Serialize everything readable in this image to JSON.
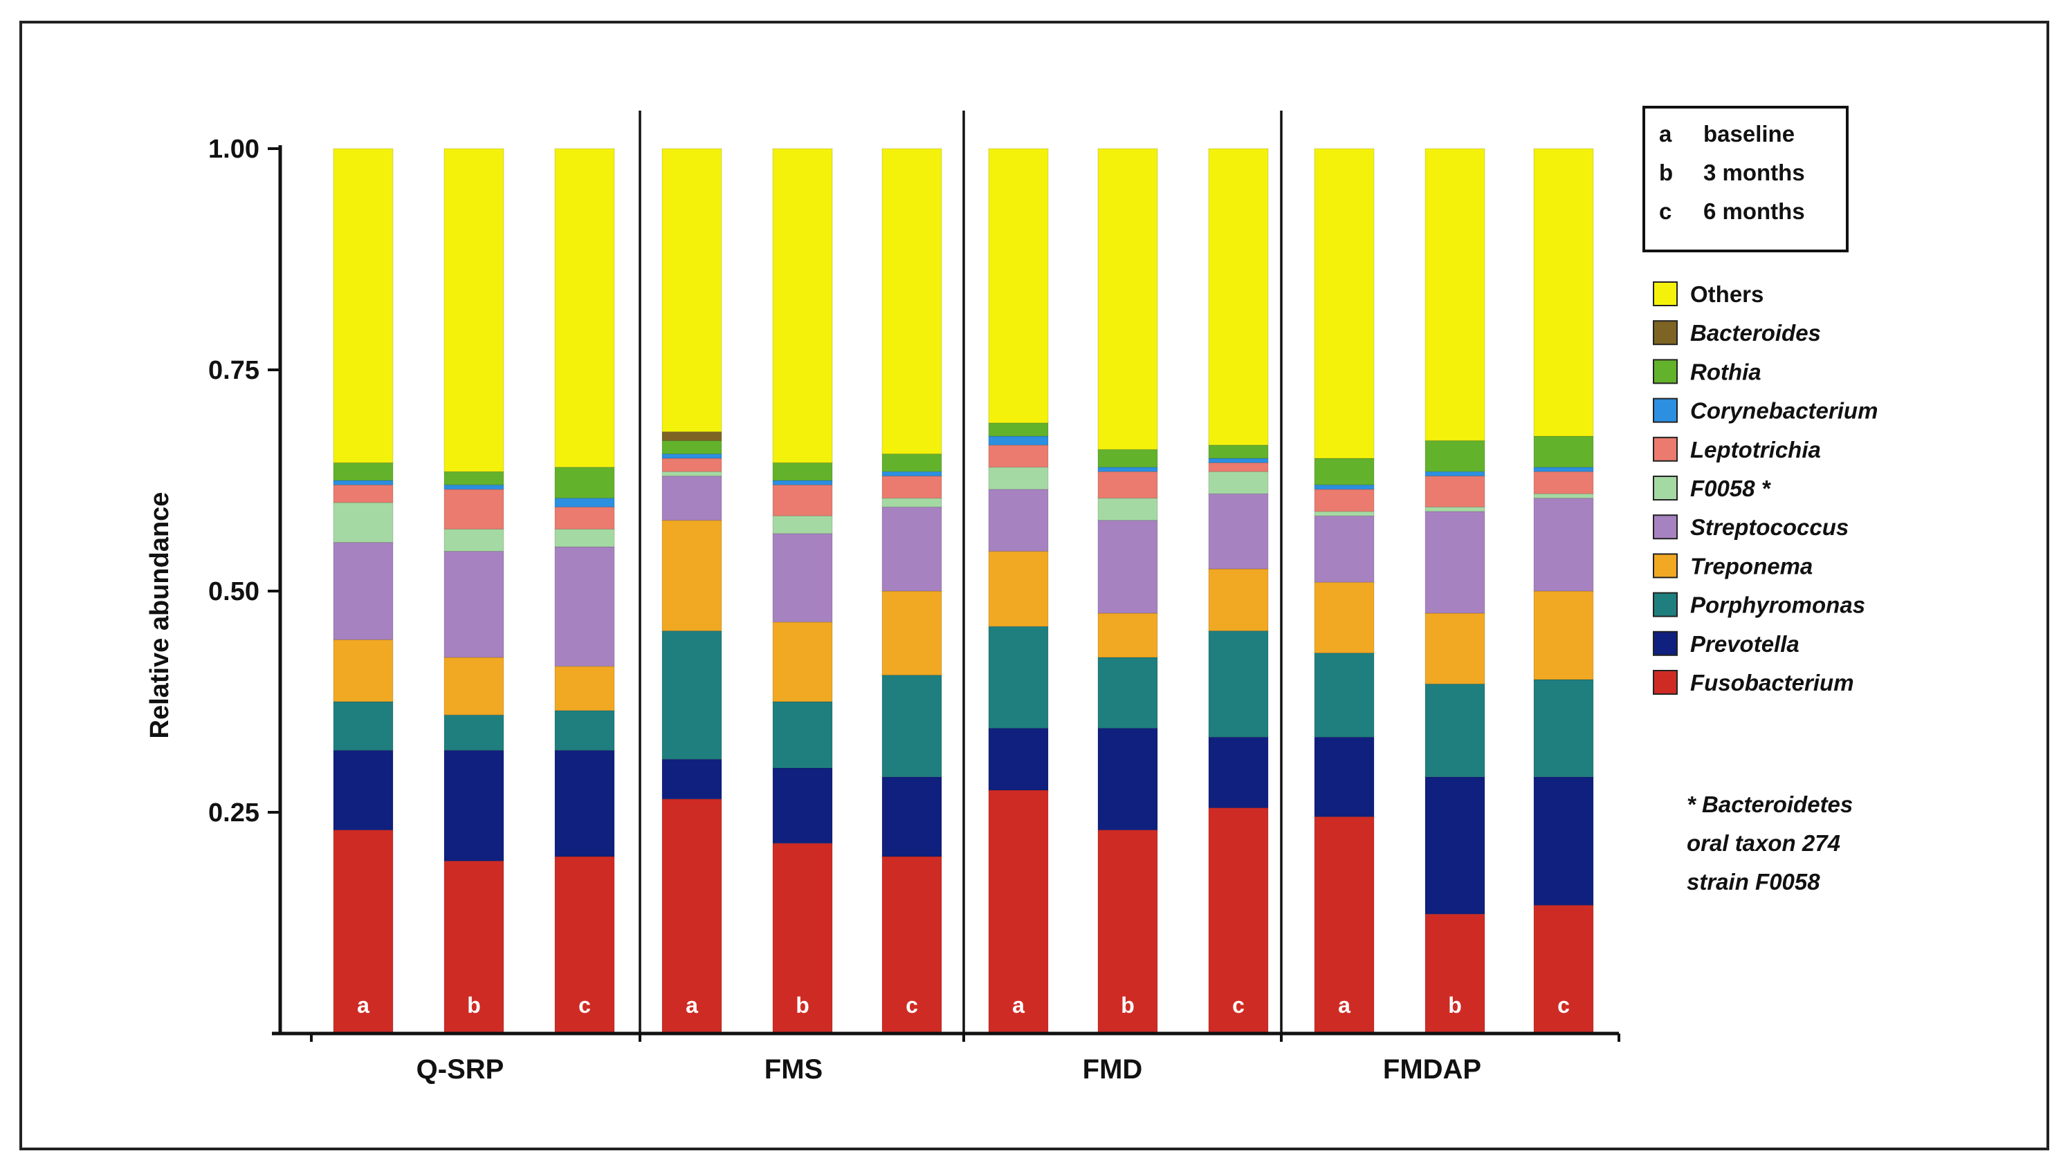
{
  "chart_data": {
    "type": "bar",
    "stacked": true,
    "ylabel": "Relative abundance",
    "ylim": [
      0,
      1
    ],
    "yticks": [
      "0.25",
      "0.50",
      "0.75",
      "1.00"
    ],
    "ytick_values": [
      0.25,
      0.5,
      0.75,
      1.0
    ],
    "groups": [
      "Q-SRP",
      "FMS",
      "FMD",
      "FMDAP"
    ],
    "timepoints": [
      {
        "code": "a",
        "label": "baseline"
      },
      {
        "code": "b",
        "label": "3 months"
      },
      {
        "code": "c",
        "label": "6 months"
      }
    ],
    "series": [
      {
        "name": "Fusobacterium",
        "color": "#cf2b25",
        "italic": true
      },
      {
        "name": "Prevotella",
        "color": "#10207e",
        "italic": true
      },
      {
        "name": "Porphyromonas",
        "color": "#1f7f7e",
        "italic": true
      },
      {
        "name": "Treponema",
        "color": "#f1a823",
        "italic": true
      },
      {
        "name": "Streptococcus",
        "color": "#a782c0",
        "italic": true
      },
      {
        "name": "F0058 *",
        "color": "#a5d9a3",
        "italic": true
      },
      {
        "name": "Leptotrichia",
        "color": "#ea7b6e",
        "italic": true
      },
      {
        "name": "Corynebacterium",
        "color": "#2c8fe0",
        "italic": true
      },
      {
        "name": "Rothia",
        "color": "#63b22c",
        "italic": true
      },
      {
        "name": "Bacteroides",
        "color": "#7e6424",
        "italic": true
      },
      {
        "name": "Others",
        "color": "#f4f20a",
        "italic": false
      }
    ],
    "bars": [
      {
        "group": "Q-SRP",
        "tp": "a",
        "values": [
          0.23,
          0.09,
          0.055,
          0.07,
          0.11,
          0.045,
          0.02,
          0.005,
          0.02,
          0.0,
          0.355
        ]
      },
      {
        "group": "Q-SRP",
        "tp": "b",
        "values": [
          0.195,
          0.125,
          0.04,
          0.065,
          0.12,
          0.025,
          0.045,
          0.005,
          0.015,
          0.0,
          0.365
        ]
      },
      {
        "group": "Q-SRP",
        "tp": "c",
        "values": [
          0.2,
          0.12,
          0.045,
          0.05,
          0.135,
          0.02,
          0.025,
          0.01,
          0.035,
          0.0,
          0.36
        ]
      },
      {
        "group": "FMS",
        "tp": "a",
        "values": [
          0.265,
          0.045,
          0.145,
          0.125,
          0.05,
          0.005,
          0.015,
          0.005,
          0.015,
          0.01,
          0.32
        ]
      },
      {
        "group": "FMS",
        "tp": "b",
        "values": [
          0.215,
          0.085,
          0.075,
          0.09,
          0.1,
          0.02,
          0.035,
          0.005,
          0.02,
          0.0,
          0.355
        ]
      },
      {
        "group": "FMS",
        "tp": "c",
        "values": [
          0.2,
          0.09,
          0.115,
          0.095,
          0.095,
          0.01,
          0.025,
          0.005,
          0.02,
          0.0,
          0.345
        ]
      },
      {
        "group": "FMD",
        "tp": "a",
        "values": [
          0.275,
          0.07,
          0.115,
          0.085,
          0.07,
          0.025,
          0.025,
          0.01,
          0.015,
          0.0,
          0.31
        ]
      },
      {
        "group": "FMD",
        "tp": "b",
        "values": [
          0.23,
          0.115,
          0.08,
          0.05,
          0.105,
          0.025,
          0.03,
          0.005,
          0.02,
          0.0,
          0.34
        ]
      },
      {
        "group": "FMD",
        "tp": "c",
        "values": [
          0.255,
          0.08,
          0.12,
          0.07,
          0.085,
          0.025,
          0.01,
          0.005,
          0.015,
          0.0,
          0.335
        ]
      },
      {
        "group": "FMDAP",
        "tp": "a",
        "values": [
          0.245,
          0.09,
          0.095,
          0.08,
          0.075,
          0.005,
          0.025,
          0.005,
          0.03,
          0.0,
          0.35
        ]
      },
      {
        "group": "FMDAP",
        "tp": "b",
        "values": [
          0.135,
          0.155,
          0.105,
          0.08,
          0.115,
          0.005,
          0.035,
          0.005,
          0.035,
          0.0,
          0.33
        ]
      },
      {
        "group": "FMDAP",
        "tp": "c",
        "values": [
          0.145,
          0.145,
          0.11,
          0.1,
          0.105,
          0.005,
          0.025,
          0.005,
          0.035,
          0.0,
          0.325
        ]
      }
    ],
    "footnote": [
      "* Bacteroidetes",
      "oral taxon 274",
      "strain F0058"
    ]
  }
}
